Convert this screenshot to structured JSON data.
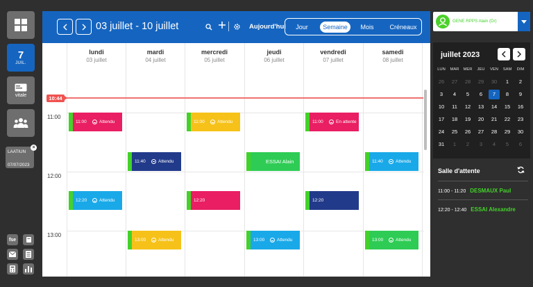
{
  "colors": {
    "primary": "#1565c0",
    "accent_green": "#43d22a",
    "pink": "#e91e63",
    "yellow": "#f6c21a",
    "navy": "#223a8a",
    "cyan": "#1aa9e8",
    "green": "#2ecc55",
    "now": "#ef5350"
  },
  "sidebar": {
    "today_day": "7",
    "today_month": "JUIL.",
    "vitale_label": "vitale",
    "patient_chip": {
      "name": "LAATIUN",
      "date": "07/07/2023"
    },
    "tools": [
      {
        "label": "fse",
        "icon": "fse-icon"
      },
      {
        "label": "",
        "icon": "cup-icon"
      },
      {
        "label": "",
        "icon": "mail-icon"
      },
      {
        "label": "",
        "icon": "document-icon"
      },
      {
        "label": "",
        "icon": "calculator-icon"
      },
      {
        "label": "",
        "icon": "bar-chart-icon"
      }
    ]
  },
  "toolbar": {
    "range_title": "03 juillet - 10 juillet",
    "today_label": "Aujourd'hui",
    "views": [
      {
        "label": "Jour",
        "active": false
      },
      {
        "label": "Semaine",
        "active": true
      },
      {
        "label": "Mois",
        "active": false
      },
      {
        "label": "Créneaux",
        "active": false
      }
    ]
  },
  "calendar": {
    "days": [
      {
        "name": "lundi",
        "date": "03 juillet"
      },
      {
        "name": "mardi",
        "date": "04 juillet"
      },
      {
        "name": "mercredi",
        "date": "05 juillet"
      },
      {
        "name": "jeudi",
        "date": "06 juillet"
      },
      {
        "name": "vendredi",
        "date": "07 juillet"
      },
      {
        "name": "samedi",
        "date": "08 juillet"
      }
    ],
    "hours": [
      "11:00",
      "12:00",
      "13:00"
    ],
    "now_label": "10:44",
    "appointments": [
      {
        "day": 0,
        "start": "11:00",
        "time": "11:00",
        "status": "Attendu",
        "color": "#e91e63"
      },
      {
        "day": 2,
        "start": "11:00",
        "time": "11:00",
        "status": "Attendu",
        "color": "#f6c21a"
      },
      {
        "day": 4,
        "start": "11:00",
        "time": "11:00",
        "status": "En attente",
        "color": "#e91e63"
      },
      {
        "day": 1,
        "start": "11:40",
        "time": "11:40",
        "status": "Attendu",
        "color": "#223a8a"
      },
      {
        "day": 3,
        "start": "11:40",
        "time": "",
        "status": "",
        "name": "ESSAI Alain",
        "color": "#2ecc55"
      },
      {
        "day": 5,
        "start": "11:40",
        "time": "11:40",
        "status": "Attendu",
        "color": "#1aa9e8"
      },
      {
        "day": 0,
        "start": "12:20",
        "time": "12:20",
        "status": "Attendu",
        "color": "#1aa9e8"
      },
      {
        "day": 2,
        "start": "12:20",
        "time": "12:20",
        "status": "",
        "color": "#e91e63"
      },
      {
        "day": 4,
        "start": "12:20",
        "time": "12:20",
        "status": "",
        "color": "#223a8a"
      },
      {
        "day": 1,
        "start": "13:00",
        "time": "13:00",
        "status": "Attendu",
        "color": "#f6c21a"
      },
      {
        "day": 3,
        "start": "13:00",
        "time": "13:00",
        "status": "Attendu",
        "color": "#1aa9e8"
      },
      {
        "day": 5,
        "start": "13:00",
        "time": "13:00",
        "status": "Attendu",
        "color": "#2ecc55"
      }
    ]
  },
  "doctor": {
    "name": "GENE RPPS Alain (Dr)"
  },
  "mini_calendar": {
    "title": "juillet 2023",
    "weekdays": [
      "LUN",
      "MAR",
      "MER",
      "JEU",
      "VEN",
      "SAM",
      "DIM"
    ],
    "weeks": [
      [
        [
          "26",
          true
        ],
        [
          "27",
          true
        ],
        [
          "28",
          true
        ],
        [
          "29",
          true
        ],
        [
          "30",
          true
        ],
        [
          "1",
          false
        ],
        [
          "2",
          false
        ]
      ],
      [
        [
          "3",
          false
        ],
        [
          "4",
          false
        ],
        [
          "5",
          false
        ],
        [
          "6",
          false
        ],
        [
          "7",
          false
        ],
        [
          "8",
          false
        ],
        [
          "9",
          false
        ]
      ],
      [
        [
          "10",
          false
        ],
        [
          "11",
          false
        ],
        [
          "12",
          false
        ],
        [
          "13",
          false
        ],
        [
          "14",
          false
        ],
        [
          "15",
          false
        ],
        [
          "16",
          false
        ]
      ],
      [
        [
          "17",
          false
        ],
        [
          "18",
          false
        ],
        [
          "19",
          false
        ],
        [
          "20",
          false
        ],
        [
          "21",
          false
        ],
        [
          "22",
          false
        ],
        [
          "23",
          false
        ]
      ],
      [
        [
          "24",
          false
        ],
        [
          "25",
          false
        ],
        [
          "26",
          false
        ],
        [
          "27",
          false
        ],
        [
          "28",
          false
        ],
        [
          "29",
          false
        ],
        [
          "30",
          false
        ]
      ],
      [
        [
          "31",
          false
        ],
        [
          "1",
          true
        ],
        [
          "2",
          true
        ],
        [
          "3",
          true
        ],
        [
          "4",
          true
        ],
        [
          "5",
          true
        ],
        [
          "6",
          true
        ]
      ]
    ],
    "selected": "7"
  },
  "waiting_room": {
    "title": "Salle d'attente",
    "entries": [
      {
        "time": "11:00 - 11:20",
        "name": "DESMAUX Paul"
      },
      {
        "time": "12:20 - 12:40",
        "name": "ESSAI Alexandre"
      }
    ]
  }
}
